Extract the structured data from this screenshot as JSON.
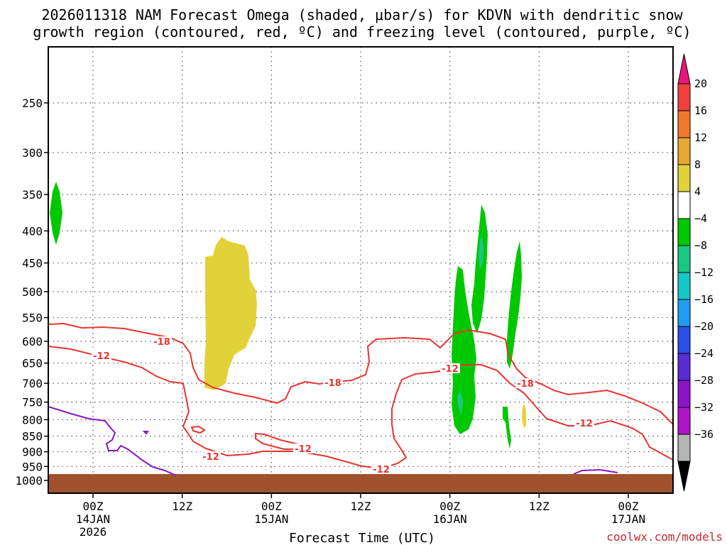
{
  "title": {
    "line1": "2026011318 NAM Forecast Omega (shaded, μbar/s) for KDVN with dendritic snow",
    "line2": "growth region (contoured, red, ºC) and freezing level (contoured, purple, ºC)"
  },
  "credit": "coolwx.com/models",
  "chart_data": {
    "type": "time-height cross section",
    "title": "2026011318 NAM Forecast Omega (shaded, μbar/s) for KDVN with dendritic snow growth region (contoured, red, ºC) and freezing level (contoured, purple, ºC)",
    "xlabel": "Forecast Time (UTC)",
    "ylabel": "",
    "xlim_hours": [
      -6,
      66
    ],
    "x_ticks": [
      {
        "hour": 0,
        "label": "00Z",
        "sub1": "14JAN",
        "sub2": "2026"
      },
      {
        "hour": 12,
        "label": "12Z",
        "sub1": "",
        "sub2": ""
      },
      {
        "hour": 24,
        "label": "00Z",
        "sub1": "15JAN",
        "sub2": ""
      },
      {
        "hour": 36,
        "label": "12Z",
        "sub1": "",
        "sub2": ""
      },
      {
        "hour": 48,
        "label": "00Z",
        "sub1": "16JAN",
        "sub2": ""
      },
      {
        "hour": 60,
        "label": "12Z",
        "sub1": "",
        "sub2": ""
      },
      {
        "hour": 72,
        "label": "00Z",
        "sub1": "17JAN",
        "sub2": ""
      }
    ],
    "y_levels_hpa": [
      250,
      300,
      350,
      400,
      450,
      500,
      550,
      600,
      650,
      700,
      750,
      800,
      850,
      900,
      950,
      1000
    ],
    "ylim_hpa": [
      200,
      1025
    ],
    "y_scale": "pressure (log-like)",
    "grid": true,
    "colorbar": {
      "labels": [
        "20",
        "16",
        "12",
        "8",
        "4",
        "−4",
        "−8",
        "−12",
        "−16",
        "−20",
        "−24",
        "−28",
        "−32",
        "−36"
      ],
      "colors": [
        "#e8177f",
        "#f0423a",
        "#f07a2a",
        "#e6a830",
        "#e2d23a",
        "#ffffff",
        "#00c800",
        "#19c883",
        "#14c8c8",
        "#1e9ef0",
        "#2850e6",
        "#5a2ad2",
        "#8c14c8",
        "#b014c8",
        "#b4b4b4",
        "#000000"
      ]
    },
    "series": [
      {
        "name": "-12",
        "kind": "dendritic growth contour",
        "color": "#e8342f"
      },
      {
        "name": "-18",
        "kind": "dendritic growth contour",
        "color": "#e8342f"
      },
      {
        "kind": "freezing level contour",
        "color": "#8c14c8"
      }
    ],
    "contour_labels": [
      "-18",
      "-12",
      "-12",
      "-18",
      "-12",
      "-12",
      "-12",
      "-18",
      "-12"
    ],
    "terrain_color": "#a0522d"
  }
}
